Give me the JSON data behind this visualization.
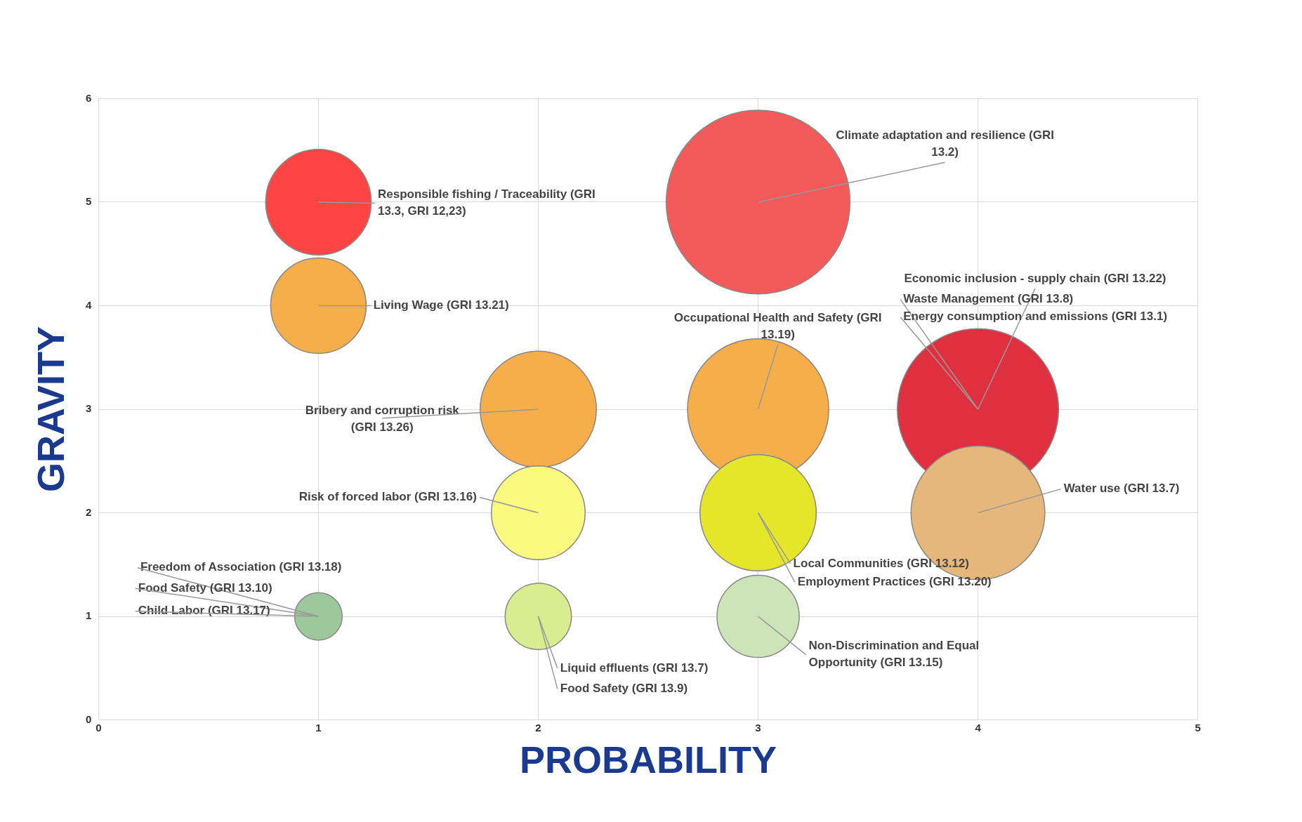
{
  "chart_data": {
    "type": "bubble",
    "xlabel": "PROBABILITY",
    "ylabel": "GRAVITY",
    "x": [
      1,
      1,
      2,
      2,
      1,
      2,
      3,
      3,
      3,
      3,
      4,
      4
    ],
    "values": [
      5,
      4,
      3,
      2,
      1,
      1,
      5,
      3,
      2,
      1,
      3,
      2
    ],
    "sizes": [
      0.33,
      0.27,
      0.4,
      0.26,
      0.067,
      0.13,
      1,
      0.59,
      0.4,
      0.2,
      0.77,
      0.53
    ],
    "colors": [
      "#ff4444",
      "#f5ae4a",
      "#f5ae4a",
      "#fafa80",
      "#9cc89c",
      "#d8ec90",
      "#f55a5a",
      "#f5ae4a",
      "#e5e52a",
      "#cde3b8",
      "#e03040",
      "#e5b77a"
    ],
    "xlim": [
      0,
      5
    ],
    "xticks": [
      0,
      1,
      2,
      3,
      4,
      5
    ],
    "ylim": [
      0,
      6
    ],
    "yticks": [
      0,
      1,
      2,
      3,
      4,
      5,
      6
    ],
    "grid": true,
    "legend": false,
    "annotations": [
      {
        "text": "Climate adaptation and resilience (GRI 13.2)",
        "x": 3,
        "y": 5
      },
      {
        "text": "Responsible fishing / Traceability (GRI 13.3, GRI 12,23)",
        "x": 1,
        "y": 5
      },
      {
        "text": "Living Wage (GRI 13.21)",
        "x": 1,
        "y": 4
      },
      {
        "text": "Economic inclusion - supply chain (GRI 13.22)",
        "x": 4,
        "y": 3
      },
      {
        "text": "Waste Management (GRI 13.8)",
        "x": 4,
        "y": 3
      },
      {
        "text": "Energy consumption and emissions (GRI 13.1)",
        "x": 4,
        "y": 3
      },
      {
        "text": "Occupational Health and Safety (GRI 13.19)",
        "x": 3,
        "y": 3
      },
      {
        "text": "Bribery and corruption risk (GRI 13.26)",
        "x": 2,
        "y": 3
      },
      {
        "text": "Risk of forced labor (GRI 13.16)",
        "x": 2,
        "y": 2
      },
      {
        "text": "Water use (GRI 13.7)",
        "x": 4,
        "y": 2
      },
      {
        "text": "Local Communities (GRI 13.12)",
        "x": 3,
        "y": 2
      },
      {
        "text": "Employment Practices (GRI 13.20)",
        "x": 3,
        "y": 2
      },
      {
        "text": "Freedom of Association (GRI 13.18)",
        "x": 1,
        "y": 1
      },
      {
        "text": "Food Safety (GRI 13.10)",
        "x": 1,
        "y": 1
      },
      {
        "text": "Child Labor (GRI 13.17)",
        "x": 1,
        "y": 1
      },
      {
        "text": "Non-Discrimination and Equal Opportunity (GRI 13.15)",
        "x": 3,
        "y": 1
      },
      {
        "text": "Liquid effluents (GRI 13.7)",
        "x": 2,
        "y": 1
      },
      {
        "text": "Food Safety (GRI 13.9)",
        "x": 2,
        "y": 1
      }
    ]
  }
}
